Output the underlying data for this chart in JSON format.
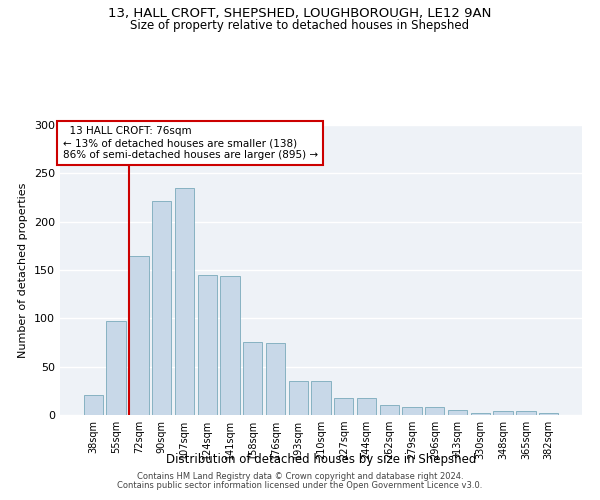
{
  "title1": "13, HALL CROFT, SHEPSHED, LOUGHBOROUGH, LE12 9AN",
  "title2": "Size of property relative to detached houses in Shepshed",
  "xlabel": "Distribution of detached houses by size in Shepshed",
  "ylabel": "Number of detached properties",
  "categories": [
    "38sqm",
    "55sqm",
    "72sqm",
    "90sqm",
    "107sqm",
    "124sqm",
    "141sqm",
    "158sqm",
    "176sqm",
    "193sqm",
    "210sqm",
    "227sqm",
    "244sqm",
    "262sqm",
    "279sqm",
    "296sqm",
    "313sqm",
    "330sqm",
    "348sqm",
    "365sqm",
    "382sqm"
  ],
  "values": [
    21,
    97,
    165,
    221,
    235,
    145,
    144,
    76,
    75,
    35,
    35,
    18,
    18,
    10,
    8,
    8,
    5,
    2,
    4,
    4,
    2
  ],
  "bar_color": "#c8d8e8",
  "bar_edge_color": "#7aaabb",
  "highlight_label": "13 HALL CROFT: 76sqm",
  "pct_smaller": "13% of detached houses are smaller (138)",
  "pct_larger": "86% of semi-detached houses are larger (895)",
  "vline_color": "#cc0000",
  "background_color": "#eef2f7",
  "grid_color": "#ffffff",
  "ylim": [
    0,
    300
  ],
  "yticks": [
    0,
    50,
    100,
    150,
    200,
    250,
    300
  ],
  "footer1": "Contains HM Land Registry data © Crown copyright and database right 2024.",
  "footer2": "Contains public sector information licensed under the Open Government Licence v3.0.",
  "vline_pos": 1.58
}
